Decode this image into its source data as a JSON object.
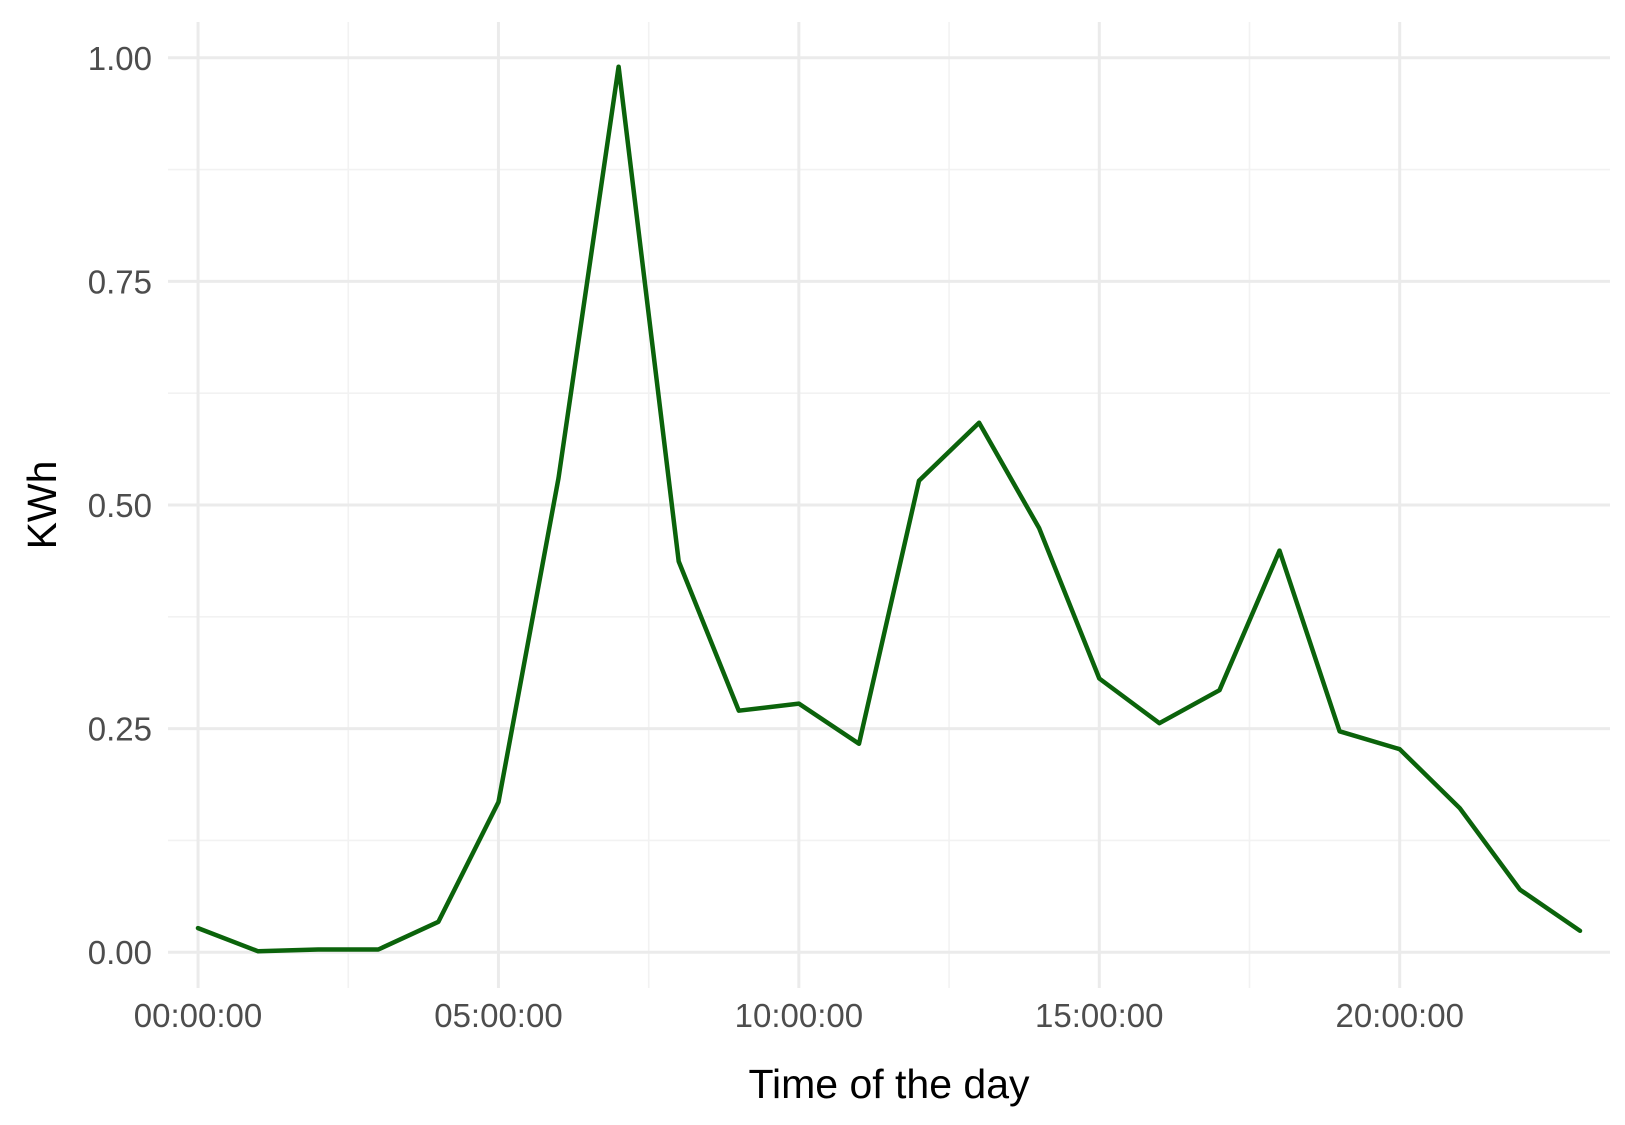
{
  "chart_data": {
    "type": "line",
    "title": "",
    "xlabel": "Time of the day",
    "ylabel": "KWh",
    "x_unit": "hour of day",
    "x_ticks": [
      {
        "value": 0,
        "label": "00:00:00"
      },
      {
        "value": 5,
        "label": "05:00:00"
      },
      {
        "value": 10,
        "label": "10:00:00"
      },
      {
        "value": 15,
        "label": "15:00:00"
      },
      {
        "value": 20,
        "label": "20:00:00"
      }
    ],
    "y_ticks": [
      {
        "value": 0,
        "label": "0.00"
      },
      {
        "value": 0.25,
        "label": "0.25"
      },
      {
        "value": 0.5,
        "label": "0.50"
      },
      {
        "value": 0.75,
        "label": "0.75"
      },
      {
        "value": 1.0,
        "label": "1.00"
      }
    ],
    "xlim": [
      -0.5,
      23.5
    ],
    "ylim": [
      -0.04,
      1.04
    ],
    "grid": true,
    "legend": "none",
    "color": "#0b630b",
    "series": [
      {
        "x": [
          0,
          1,
          2,
          3,
          4,
          5,
          6,
          7,
          8,
          9,
          10,
          11,
          12,
          13,
          14,
          15,
          16,
          17,
          18,
          19,
          20,
          21,
          22,
          23
        ],
        "values": [
          0.027,
          0.001,
          0.003,
          0.003,
          0.034,
          0.168,
          0.53,
          0.99,
          0.437,
          0.27,
          0.278,
          0.233,
          0.527,
          0.592,
          0.474,
          0.306,
          0.256,
          0.293,
          0.449,
          0.247,
          0.227,
          0.161,
          0.07,
          0.024
        ]
      }
    ]
  }
}
